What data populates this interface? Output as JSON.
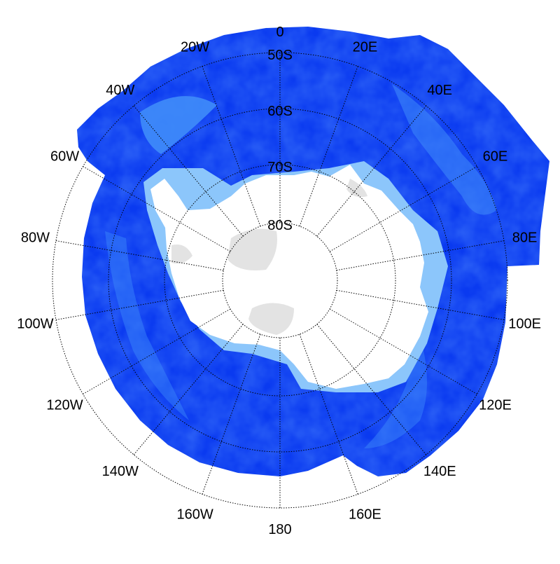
{
  "map": {
    "projection": "south-polar-stereographic",
    "center_latitude": "90S",
    "colors": {
      "ocean_deep": "#0a3af0",
      "ocean_mid": "#1f5cf7",
      "ocean_shelf": "#3f8cfa",
      "ocean_shallow": "#8cc6fb",
      "land": "#ffffff",
      "land_relief": "#e3e3e3",
      "graticule": "#000000",
      "label": "#000000"
    },
    "latitude_labels": [
      "50S",
      "60S",
      "70S",
      "80S"
    ],
    "longitude_labels": [
      {
        "label": "0",
        "lon": 0
      },
      {
        "label": "20E",
        "lon": 20
      },
      {
        "label": "40E",
        "lon": 40
      },
      {
        "label": "60E",
        "lon": 60
      },
      {
        "label": "80E",
        "lon": 80
      },
      {
        "label": "100E",
        "lon": 100
      },
      {
        "label": "120E",
        "lon": 120
      },
      {
        "label": "140E",
        "lon": 140
      },
      {
        "label": "160E",
        "lon": 160
      },
      {
        "label": "180",
        "lon": 180
      },
      {
        "label": "160W",
        "lon": -160
      },
      {
        "label": "140W",
        "lon": -140
      },
      {
        "label": "120W",
        "lon": -120
      },
      {
        "label": "100W",
        "lon": -100
      },
      {
        "label": "80W",
        "lon": -80
      },
      {
        "label": "60W",
        "lon": -60
      },
      {
        "label": "40W",
        "lon": -40
      },
      {
        "label": "20W",
        "lon": -20
      }
    ]
  }
}
